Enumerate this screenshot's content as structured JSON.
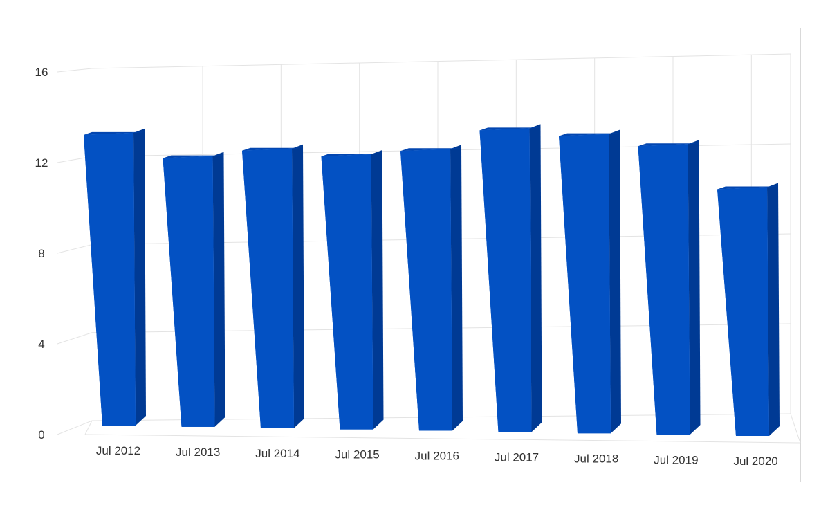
{
  "chart_data": {
    "type": "bar",
    "categories": [
      "Jul 2012",
      "Jul 2013",
      "Jul 2014",
      "Jul 2015",
      "Jul 2016",
      "Jul 2017",
      "Jul 2018",
      "Jul 2019",
      "Jul 2020"
    ],
    "series": [
      {
        "values": [
          13.3,
          12.3,
          12.7,
          12.5,
          12.8,
          13.8,
          13.6,
          13.2,
          11.3
        ]
      }
    ],
    "yticks": [
      0,
      4,
      8,
      12,
      16
    ],
    "ylim": [
      0,
      16
    ],
    "grid": true,
    "style": "3d-column",
    "colors": {
      "bar_front": "#0351c3",
      "bar_side": "#003a94",
      "bar_top": "#0346b0",
      "grid": "#e3e3e3",
      "frame_border": "#d9d9d9"
    }
  }
}
